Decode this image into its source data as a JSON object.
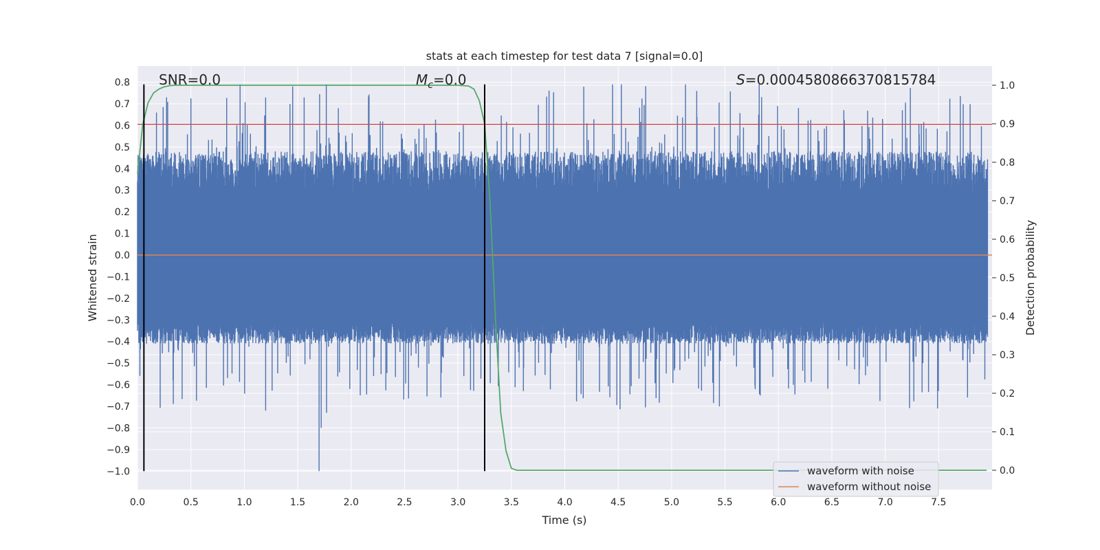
{
  "chart_data": {
    "type": "line",
    "title": "stats at each timestep for test data 7 [signal=0.0]",
    "xlabel": "Time (s)",
    "ylabel_left": "Whitened strain",
    "ylabel_right": "Detection probability",
    "xlim": [
      0.0,
      8.0
    ],
    "ylim_left": [
      -1.085,
      0.875
    ],
    "ylim_right": [
      -0.05,
      1.05
    ],
    "x_ticks": [
      "0.0",
      "0.5",
      "1.0",
      "1.5",
      "2.0",
      "2.5",
      "3.0",
      "3.5",
      "4.0",
      "4.5",
      "5.0",
      "5.5",
      "6.0",
      "6.5",
      "7.0",
      "7.5"
    ],
    "y_left_ticks": [
      "0.8",
      "0.7",
      "0.6",
      "0.5",
      "0.4",
      "0.3",
      "0.2",
      "0.1",
      "0.0",
      "−0.1",
      "−0.2",
      "−0.3",
      "−0.4",
      "−0.5",
      "−0.6",
      "−0.7",
      "−0.8",
      "−0.9",
      "−1.0"
    ],
    "y_right_ticks": [
      "1.0",
      "0.9",
      "0.8",
      "0.7",
      "0.6",
      "0.5",
      "0.4",
      "0.3",
      "0.2",
      "0.1",
      "0.0"
    ],
    "grid": true,
    "legend_placement": "lower-right",
    "series": [
      {
        "name": "waveform with noise",
        "color": "#4c72b0",
        "axis": "left",
        "kind": "noise",
        "envelope_typical": [
          -0.36,
          0.4
        ],
        "envelope_extreme": [
          -1.0,
          0.79
        ]
      },
      {
        "name": "waveform without noise",
        "color": "#dd8452",
        "axis": "left",
        "x": [
          0.0,
          8.0
        ],
        "y": [
          0.0,
          0.0
        ]
      },
      {
        "axis": "right",
        "color": "#55a868",
        "x": [
          0.0,
          0.05,
          0.1,
          0.15,
          0.2,
          0.25,
          0.3,
          0.35,
          0.4,
          0.5,
          1.0,
          2.0,
          2.5,
          3.0,
          3.1,
          3.15,
          3.2,
          3.25,
          3.3,
          3.35,
          3.4,
          3.45,
          3.5,
          3.55,
          3.6,
          4.0,
          5.0,
          6.0,
          7.0,
          7.95
        ],
        "y": [
          0.77,
          0.9,
          0.955,
          0.98,
          0.99,
          0.996,
          0.999,
          1.0,
          1.0,
          1.0,
          1.0,
          1.0,
          1.0,
          1.0,
          0.998,
          0.99,
          0.96,
          0.9,
          0.7,
          0.4,
          0.15,
          0.05,
          0.005,
          0.0,
          0.0,
          0.0,
          0.0,
          0.0,
          0.0,
          0.0
        ]
      },
      {
        "axis": "left",
        "color": "#c44e52",
        "x": [
          0.0,
          8.0
        ],
        "y": [
          0.605,
          0.605
        ]
      }
    ],
    "vertical_markers": {
      "color": "#000000",
      "x": [
        0.06,
        3.25
      ],
      "y_range": [
        -1.0,
        0.79
      ]
    },
    "annotations": [
      {
        "text": "SNR=0.0"
      },
      {
        "text_main": "M",
        "text_sub": "c",
        "text_rest": "=0.0"
      },
      {
        "text_main": "S",
        "text_rest": "=0.0004580866370815784"
      }
    ]
  }
}
